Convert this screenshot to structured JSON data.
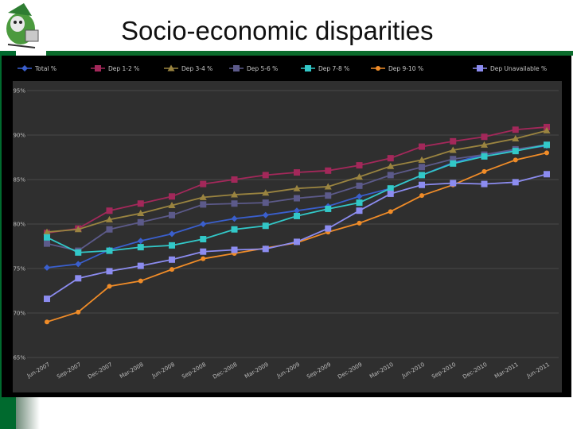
{
  "slide": {
    "title": "Socio-economic disparities"
  },
  "colors": {
    "header_green": "#006a2e",
    "chart_background": "#000000",
    "plot_background": "#2f2f2f"
  },
  "chart_data": {
    "type": "line",
    "title": "",
    "xlabel": "",
    "ylabel": "",
    "ylim": [
      65,
      95
    ],
    "yticks": [
      "65%",
      "70%",
      "75%",
      "80%",
      "85%",
      "90%",
      "95%"
    ],
    "ytick_values": [
      65,
      70,
      75,
      80,
      85,
      90,
      95
    ],
    "grid": true,
    "legend_position": "top",
    "categories": [
      "Jun-2007",
      "Sep-2007",
      "Dec-2007",
      "Mar-2008",
      "Jun-2008",
      "Sep-2008",
      "Dec-2008",
      "Mar-2009",
      "Jun-2009",
      "Sep-2009",
      "Dec-2009",
      "Mar-2010",
      "Jun-2010",
      "Sep-2010",
      "Dec-2010",
      "Mar-2011",
      "Jun-2011"
    ],
    "series": [
      {
        "name": "Total %",
        "color": "#3a5fcd",
        "marker": "diamond",
        "values": [
          75.1,
          75.5,
          77.1,
          78.1,
          78.9,
          80.0,
          80.6,
          81.0,
          81.5,
          82.0,
          83.1,
          84.0,
          85.5,
          86.9,
          87.8,
          88.3,
          88.8
        ]
      },
      {
        "name": "Dep 1-2 %",
        "color": "#a3285a",
        "marker": "square",
        "values": [
          79.0,
          79.5,
          81.5,
          82.3,
          83.1,
          84.5,
          85.0,
          85.5,
          85.8,
          86.0,
          86.6,
          87.4,
          88.7,
          89.3,
          89.8,
          90.6,
          90.9
        ]
      },
      {
        "name": "Dep 3-4 %",
        "color": "#9a8440",
        "marker": "triangle",
        "values": [
          79.1,
          79.4,
          80.5,
          81.2,
          82.1,
          83.0,
          83.3,
          83.5,
          84.0,
          84.2,
          85.3,
          86.5,
          87.2,
          88.3,
          88.9,
          89.6,
          90.5
        ]
      },
      {
        "name": "Dep 5-6 %",
        "color": "#5c5a8a",
        "marker": "square",
        "values": [
          77.8,
          77.0,
          79.4,
          80.2,
          81.0,
          82.2,
          82.3,
          82.4,
          82.9,
          83.2,
          84.3,
          85.5,
          86.4,
          87.3,
          87.8,
          88.4,
          88.9
        ]
      },
      {
        "name": "Dep 7-8 %",
        "color": "#32c8c8",
        "marker": "square",
        "values": [
          78.5,
          76.8,
          77.0,
          77.4,
          77.6,
          78.3,
          79.4,
          79.8,
          80.9,
          81.7,
          82.4,
          84.0,
          85.5,
          86.8,
          87.6,
          88.2,
          88.9
        ]
      },
      {
        "name": "Dep 9-10 %",
        "color": "#f08c28",
        "marker": "circle",
        "values": [
          69.0,
          70.1,
          73.0,
          73.6,
          74.9,
          76.1,
          76.7,
          77.3,
          77.9,
          79.1,
          80.1,
          81.4,
          83.2,
          84.4,
          85.9,
          87.2,
          88.0
        ]
      },
      {
        "name": "Dep Unavailable %",
        "color": "#8c8cf0",
        "marker": "square",
        "values": [
          71.6,
          73.9,
          74.7,
          75.3,
          76.0,
          76.9,
          77.1,
          77.2,
          78.0,
          79.5,
          81.5,
          83.4,
          84.4,
          84.6,
          84.5,
          84.7,
          85.6
        ]
      }
    ]
  }
}
